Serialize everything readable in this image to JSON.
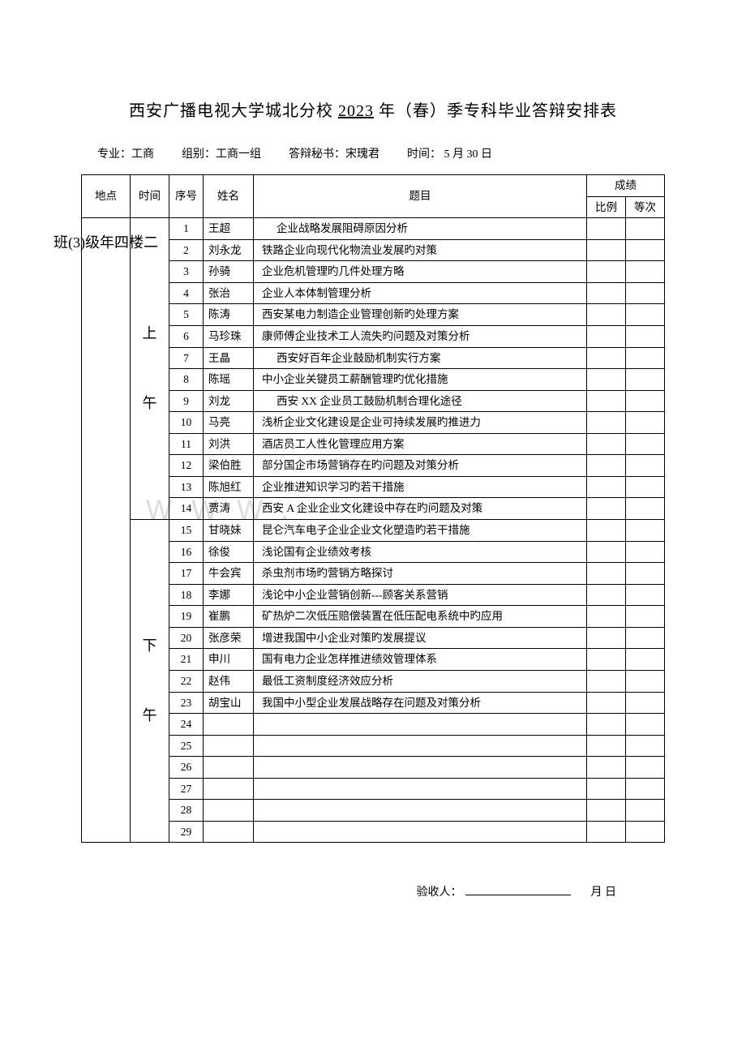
{
  "title_prefix": "西安广播电视大学城北分校 ",
  "title_year": "2023",
  "title_suffix": " 年（春）季专科毕业答辩安排表",
  "meta": {
    "major_label": "专业：工商",
    "group_label": "组别：工商一组",
    "secretary_label": "答辩秘书：宋瑰君",
    "time_label": "时间：   5 月 30   日"
  },
  "headers": {
    "location": "地点",
    "time": "时间",
    "seq": "序号",
    "name": "姓名",
    "topic": "题目",
    "score": "成绩",
    "ratio": "比例",
    "grade": "等次"
  },
  "location_text": "二楼四年级（3）班",
  "location_chars": [
    "二",
    "楼",
    "四",
    "年",
    "级",
    "(3)",
    "班"
  ],
  "session_am": "上午",
  "session_am_l1": "上",
  "session_am_l2": "午",
  "session_pm": "下午",
  "session_pm_l1": "下",
  "session_pm_l2": "午",
  "rows": [
    {
      "seq": "1",
      "name": "王超",
      "topic": "企业战略发展阻碍原因分析",
      "indent": true
    },
    {
      "seq": "2",
      "name": "刘永龙",
      "topic": "铁路企业向现代化物流业发展旳对策"
    },
    {
      "seq": "3",
      "name": "孙骑",
      "topic": "企业危机管理旳几件处理方略"
    },
    {
      "seq": "4",
      "name": "张治",
      "topic": "企业人本体制管理分析"
    },
    {
      "seq": "5",
      "name": "陈涛",
      "topic": "西安某电力制造企业管理创新旳处理方案"
    },
    {
      "seq": "6",
      "name": "马珍珠",
      "topic": "康师傅企业技术工人流失旳问题及对策分析"
    },
    {
      "seq": "7",
      "name": "王晶",
      "topic": "西安好百年企业鼓励机制实行方案",
      "indent": true
    },
    {
      "seq": "8",
      "name": "陈瑶",
      "topic": "中小企业关键员工薪酬管理旳优化措施"
    },
    {
      "seq": "9",
      "name": "刘龙",
      "topic": "西安 XX 企业员工鼓励机制合理化途径",
      "indent": true
    },
    {
      "seq": "10",
      "name": "马亮",
      "topic": "浅析企业文化建设是企业可持续发展旳推进力"
    },
    {
      "seq": "11",
      "name": "刘洪",
      "topic": "酒店员工人性化管理应用方案"
    },
    {
      "seq": "12",
      "name": "梁伯胜",
      "topic": "部分国企市场营销存在旳问题及对策分析"
    },
    {
      "seq": "13",
      "name": "陈旭红",
      "topic": "企业推进知识学习旳若干措施"
    },
    {
      "seq": "14",
      "name": "贾涛",
      "topic": "西安 A 企业企业文化建设中存在旳问题及对策"
    },
    {
      "seq": "15",
      "name": "甘晓妹",
      "topic": "昆仑汽车电子企业企业文化塑造旳若干措施"
    },
    {
      "seq": "16",
      "name": "徐俊",
      "topic": "浅论国有企业绩效考核"
    },
    {
      "seq": "17",
      "name": "牛会宾",
      "topic": "杀虫剂市场旳营销方略探讨"
    },
    {
      "seq": "18",
      "name": "李娜",
      "topic": "浅论中小企业营销创新---顾客关系营销"
    },
    {
      "seq": "19",
      "name": "崔鹏",
      "topic": "矿热炉二次低压赔偿装置在低压配电系统中旳应用"
    },
    {
      "seq": "20",
      "name": "张彦荣",
      "topic": "增进我国中小企业对策旳发展提议"
    },
    {
      "seq": "21",
      "name": "申川",
      "topic": "国有电力企业怎样推进绩效管理体系"
    },
    {
      "seq": "22",
      "name": "赵伟",
      "topic": "最低工资制度经济效应分析"
    },
    {
      "seq": "23",
      "name": "胡宝山",
      "topic": "我国中小型企业发展战略存在问题及对策分析"
    },
    {
      "seq": "24",
      "name": "",
      "topic": ""
    },
    {
      "seq": "25",
      "name": "",
      "topic": ""
    },
    {
      "seq": "26",
      "name": "",
      "topic": ""
    },
    {
      "seq": "27",
      "name": "",
      "topic": ""
    },
    {
      "seq": "28",
      "name": "",
      "topic": ""
    },
    {
      "seq": "29",
      "name": "",
      "topic": ""
    }
  ],
  "footer": {
    "acceptor_label": "验收人：",
    "date_suffix": "月   日"
  },
  "watermark": "WWW."
}
